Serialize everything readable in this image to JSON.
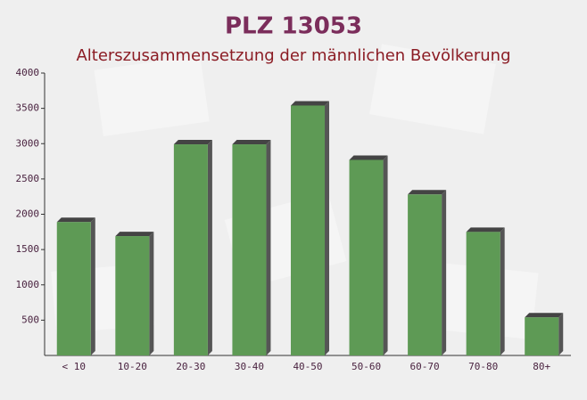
{
  "chart_data": {
    "type": "bar",
    "title": "PLZ 13053",
    "subtitle": "Alterszusammensetzung der männlichen Bevölkerung",
    "categories": [
      "< 10",
      "10-20",
      "20-30",
      "30-40",
      "40-50",
      "50-60",
      "60-70",
      "70-80",
      "80+"
    ],
    "values": [
      1890,
      1690,
      2990,
      2990,
      3540,
      2770,
      2280,
      1750,
      540
    ],
    "color": "#5e9a55",
    "ylim": [
      0,
      4000
    ],
    "yticks": [
      500,
      1000,
      1500,
      2000,
      2500,
      3000,
      3500,
      4000
    ],
    "grid": false
  }
}
